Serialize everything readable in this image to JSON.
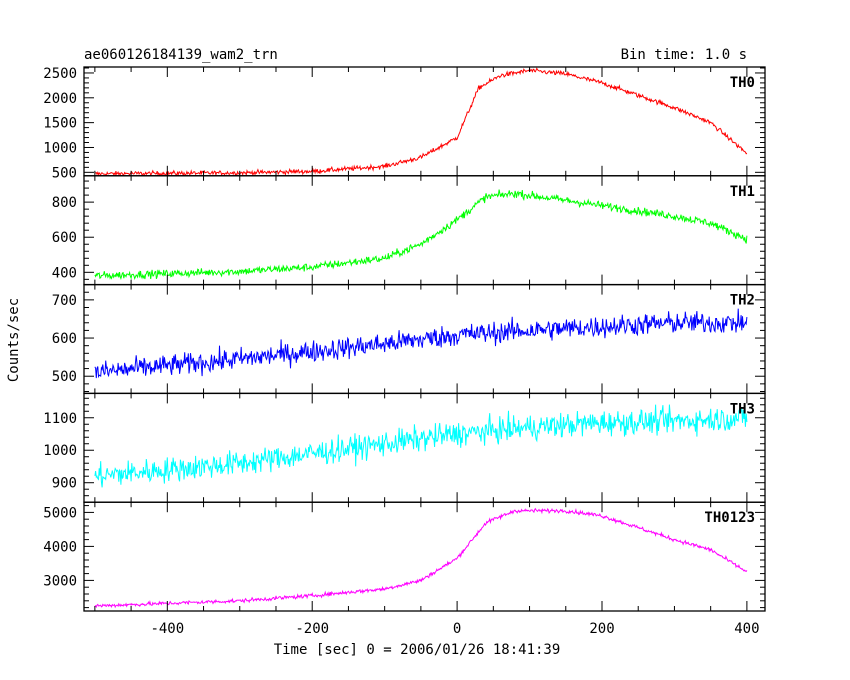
{
  "header": {
    "title": "ae060126184139_wam2_trn",
    "bin_time": "Bin time: 1.0 s"
  },
  "chart_data": {
    "type": "line",
    "title": "ae060126184139_wam2_trn",
    "subtitle": "Bin time: 1.0 s",
    "xlabel": "Time [sec] 0 = 2006/01/26 18:41:39",
    "ylabel": "Counts/sec",
    "xlim": [
      -515,
      425
    ],
    "x_ticks": [
      -400,
      -200,
      0,
      200,
      400
    ],
    "x_range": [
      -500,
      400
    ],
    "bin_seconds": 1.0,
    "grid": false,
    "panels": [
      {
        "name": "TH0",
        "color": "#ff0000",
        "ylim": [
          430,
          2620
        ],
        "y_ticks": [
          500,
          1000,
          1500,
          2000,
          2500
        ],
        "noise": 45,
        "profile_x": [
          -500,
          -300,
          -200,
          -100,
          -50,
          0,
          30,
          60,
          100,
          150,
          200,
          300,
          350,
          400
        ],
        "profile_y": [
          470,
          490,
          520,
          620,
          800,
          1200,
          2200,
          2450,
          2550,
          2480,
          2300,
          1800,
          1500,
          880
        ]
      },
      {
        "name": "TH1",
        "color": "#00ff00",
        "ylim": [
          330,
          950
        ],
        "y_ticks": [
          400,
          600,
          800
        ],
        "noise": 22,
        "profile_x": [
          -500,
          -300,
          -200,
          -100,
          -50,
          0,
          40,
          80,
          150,
          200,
          300,
          350,
          400
        ],
        "profile_y": [
          380,
          405,
          430,
          480,
          560,
          700,
          830,
          850,
          810,
          780,
          720,
          680,
          590
        ]
      },
      {
        "name": "TH2",
        "color": "#0000ff",
        "ylim": [
          455,
          740
        ],
        "y_ticks": [
          500,
          600,
          700
        ],
        "noise": 28,
        "profile_x": [
          -500,
          -300,
          -100,
          0,
          100,
          200,
          300,
          400
        ],
        "profile_y": [
          510,
          545,
          585,
          608,
          620,
          630,
          640,
          640
        ]
      },
      {
        "name": "TH3",
        "color": "#00ffff",
        "ylim": [
          840,
          1175
        ],
        "y_ticks": [
          900,
          1000,
          1100
        ],
        "noise": 38,
        "profile_x": [
          -500,
          -300,
          -100,
          0,
          100,
          200,
          300,
          400
        ],
        "profile_y": [
          920,
          960,
          1020,
          1050,
          1070,
          1085,
          1090,
          1100
        ]
      },
      {
        "name": "TH0123",
        "color": "#ff00ff",
        "ylim": [
          2100,
          5300
        ],
        "y_ticks": [
          3000,
          4000,
          5000
        ],
        "noise": 55,
        "profile_x": [
          -500,
          -300,
          -200,
          -100,
          -50,
          0,
          40,
          80,
          150,
          200,
          300,
          350,
          400
        ],
        "profile_y": [
          2250,
          2400,
          2550,
          2750,
          3000,
          3650,
          4700,
          5050,
          5050,
          4900,
          4200,
          3900,
          3250
        ]
      }
    ]
  }
}
